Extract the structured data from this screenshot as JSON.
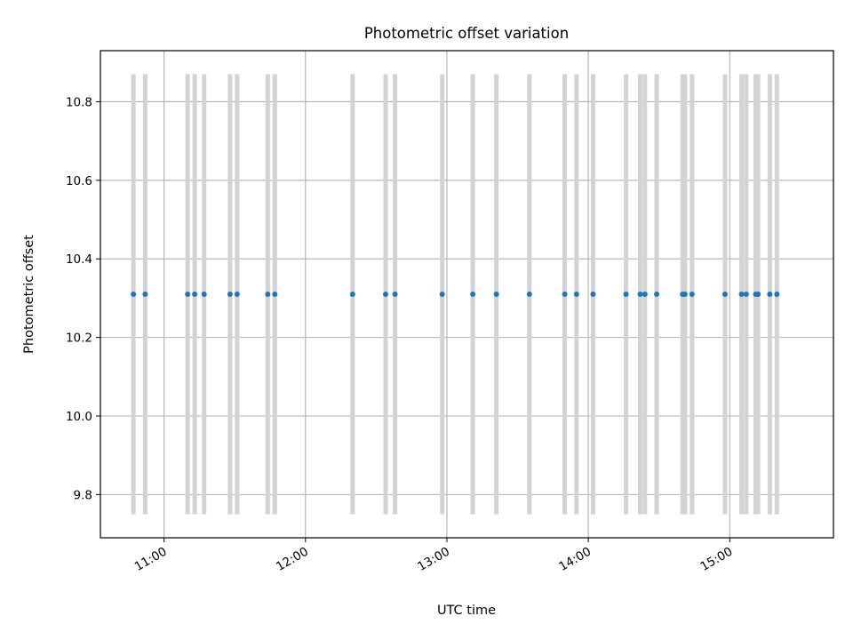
{
  "chart_data": {
    "type": "scatter",
    "title": "Photometric offset variation",
    "xlabel": "UTC time",
    "ylabel": "Photometric offset",
    "x_ticks": [
      "11:00",
      "12:00",
      "13:00",
      "14:00",
      "15:00"
    ],
    "y_ticks": [
      "9.8",
      "10.0",
      "10.2",
      "10.4",
      "10.6",
      "10.8"
    ],
    "xlim": [
      "10:33",
      "15:44"
    ],
    "ylim": [
      9.69,
      10.93
    ],
    "grid": true,
    "series": [
      {
        "color": "#1f77b4",
        "error_color": "#d3d3d3",
        "x": [
          "10:47",
          "10:52",
          "11:10",
          "11:13",
          "11:17",
          "11:28",
          "11:31",
          "11:44",
          "11:47",
          "12:20",
          "12:34",
          "12:38",
          "12:58",
          "13:11",
          "13:21",
          "13:35",
          "13:50",
          "13:55",
          "14:02",
          "14:16",
          "14:22",
          "14:24",
          "14:29",
          "14:40",
          "14:41",
          "14:44",
          "14:58",
          "15:05",
          "15:07",
          "15:11",
          "15:12",
          "15:17",
          "15:20"
        ],
        "y": [
          10.31,
          10.31,
          10.31,
          10.31,
          10.31,
          10.31,
          10.31,
          10.31,
          10.31,
          10.31,
          10.31,
          10.31,
          10.31,
          10.31,
          10.31,
          10.31,
          10.31,
          10.31,
          10.31,
          10.31,
          10.31,
          10.31,
          10.31,
          10.31,
          10.31,
          10.31,
          10.31,
          10.31,
          10.31,
          10.31,
          10.31,
          10.31,
          10.31
        ],
        "yerr": [
          0.56,
          0.56,
          0.56,
          0.56,
          0.56,
          0.56,
          0.56,
          0.56,
          0.56,
          0.56,
          0.56,
          0.56,
          0.56,
          0.56,
          0.56,
          0.56,
          0.56,
          0.56,
          0.56,
          0.56,
          0.56,
          0.56,
          0.56,
          0.56,
          0.56,
          0.56,
          0.56,
          0.56,
          0.56,
          0.56,
          0.56,
          0.56,
          0.56
        ]
      }
    ]
  }
}
